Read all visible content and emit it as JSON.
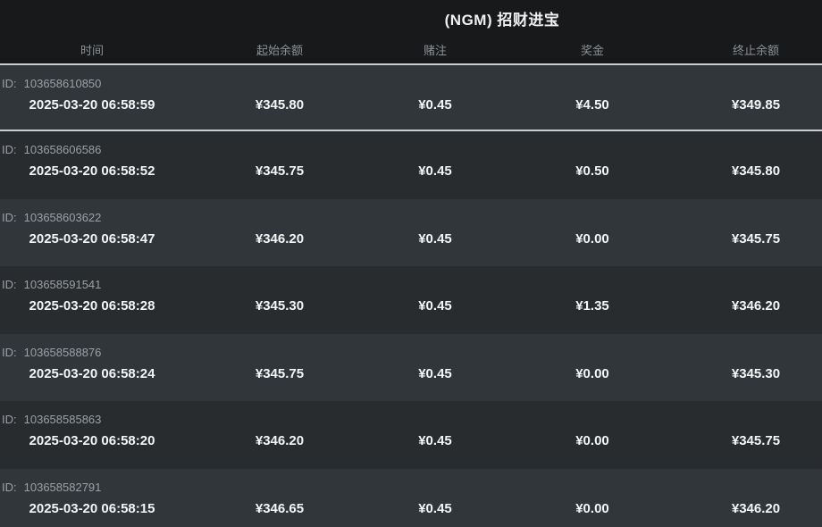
{
  "header": {
    "title": "(NGM) 招财进宝"
  },
  "table": {
    "id_prefix": "ID:",
    "columns": [
      "时间",
      "起始余额",
      "赌注",
      "奖金",
      "终止余额"
    ],
    "rows": [
      {
        "id": "103658610850",
        "time": "2025-03-20 06:58:59",
        "start_balance": "¥345.80",
        "bet": "¥0.45",
        "prize": "¥4.50",
        "end_balance": "¥349.85"
      },
      {
        "id": "103658606586",
        "time": "2025-03-20 06:58:52",
        "start_balance": "¥345.75",
        "bet": "¥0.45",
        "prize": "¥0.50",
        "end_balance": "¥345.80"
      },
      {
        "id": "103658603622",
        "time": "2025-03-20 06:58:47",
        "start_balance": "¥346.20",
        "bet": "¥0.45",
        "prize": "¥0.00",
        "end_balance": "¥345.75"
      },
      {
        "id": "103658591541",
        "time": "2025-03-20 06:58:28",
        "start_balance": "¥345.30",
        "bet": "¥0.45",
        "prize": "¥1.35",
        "end_balance": "¥346.20"
      },
      {
        "id": "103658588876",
        "time": "2025-03-20 06:58:24",
        "start_balance": "¥345.75",
        "bet": "¥0.45",
        "prize": "¥0.00",
        "end_balance": "¥345.30"
      },
      {
        "id": "103658585863",
        "time": "2025-03-20 06:58:20",
        "start_balance": "¥346.20",
        "bet": "¥0.45",
        "prize": "¥0.00",
        "end_balance": "¥345.75"
      },
      {
        "id": "103658582791",
        "time": "2025-03-20 06:58:15",
        "start_balance": "¥346.65",
        "bet": "¥0.45",
        "prize": "¥0.00",
        "end_balance": "¥346.20"
      }
    ]
  },
  "colors": {
    "header_bg": "#17191b",
    "row_odd_bg": "#31363a",
    "row_even_bg": "#282c2f",
    "separator_line": "#c7cdd1",
    "primary_text": "#f3f5f6",
    "dim_text": "#9aa0a5"
  }
}
